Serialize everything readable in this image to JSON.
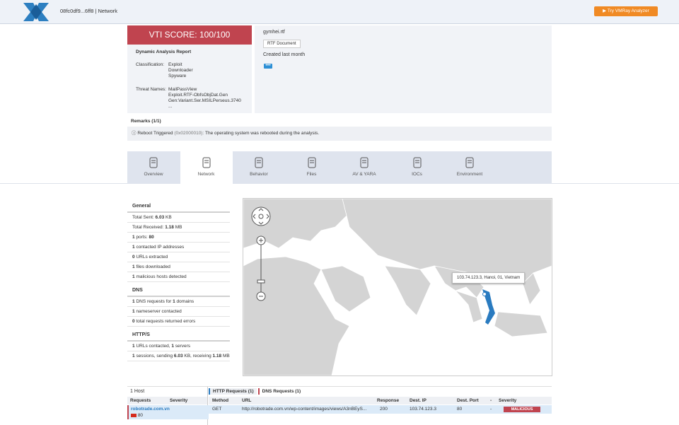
{
  "header": {
    "title": "08fc0df9...6ff8 | Network",
    "button": "Try VMRay Analyzer"
  },
  "summary": {
    "score": "VTI SCORE: 100/100",
    "report": "Dynamic Analysis Report",
    "classification_label": "Classification:",
    "classifications": [
      "Exploit",
      "Downloader",
      "Spyware"
    ],
    "threat_label": "Threat Names:",
    "threats": [
      "MailPassView",
      "Exploit.RTF-ObfsObjDat.Gen",
      "Gen:Variant.Ser.MSILPerseus.3740",
      "..."
    ],
    "file_name": "gymhei.rtf",
    "file_type": "RTF Document",
    "created": "Created last month"
  },
  "remarks": {
    "title": "Remarks (1/1)",
    "name": "Reboot Triggered",
    "code": "(0x02000010):",
    "text": "The operating system was rebooted during the analysis."
  },
  "tabs": [
    "Overview",
    "Network",
    "Behavior",
    "Files",
    "AV & YARA",
    "IOCs",
    "Environment"
  ],
  "network": {
    "sections": [
      {
        "title": "General",
        "items": [
          [
            "Total Sent:",
            "6.03",
            "KB"
          ],
          [
            "Total Received:",
            "1.18",
            "MB"
          ],
          [
            "1",
            "ports:",
            "80"
          ],
          [
            "1",
            "contacted IP addresses"
          ],
          [
            "0",
            "URLs extracted"
          ],
          [
            "1",
            "files downloaded"
          ],
          [
            "1",
            "malicious hosts detected"
          ]
        ]
      },
      {
        "title": "DNS",
        "items": [
          [
            "1",
            "DNS requests for",
            "1",
            "domains"
          ],
          [
            "1",
            "nameserver contacted"
          ],
          [
            "0",
            "total requests returned errors"
          ]
        ]
      },
      {
        "title": "HTTP/S",
        "items": [
          [
            "1",
            "URLs contacted,",
            "1",
            "servers"
          ],
          [
            "1",
            "sessions, sending",
            "6.03",
            "KB, receiving",
            "1.18",
            "MB"
          ]
        ]
      }
    ],
    "map_tooltip": "103.74.123.3, Hanoi, 01, Vietnam"
  },
  "table": {
    "hosts_title": "1 Host",
    "host_cols": [
      "Requests",
      "Severity"
    ],
    "host": "robotrade.com.vn",
    "host_port": "80",
    "tabs": [
      "HTTP Requests (1)",
      "DNS Requests (1)"
    ],
    "columns": [
      "Method",
      "URL",
      "Response",
      "Dest. IP",
      "Dest. Port",
      "-",
      "Severity"
    ],
    "rows": [
      [
        "GET",
        "http://robotrade.com.vn/wp-content/images/views/A3nBEyS...",
        "200",
        "103.74.123.3",
        "80",
        "-",
        "MALICIOUS"
      ]
    ]
  }
}
